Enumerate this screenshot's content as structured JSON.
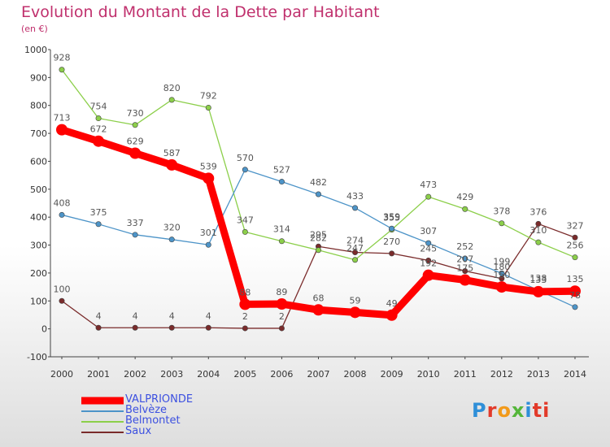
{
  "title": "Evolution du Montant de la Dette par Habitant",
  "subtitle": "(en €)",
  "logo": "Proxiti",
  "chart_data": {
    "type": "line",
    "x": [
      "2000",
      "2001",
      "2002",
      "2003",
      "2004",
      "2005",
      "2006",
      "2007",
      "2008",
      "2009",
      "2010",
      "2011",
      "2012",
      "2013",
      "2014"
    ],
    "ylim": [
      -100,
      1000
    ],
    "yticks": [
      "-100",
      "0",
      "100",
      "200",
      "300",
      "400",
      "500",
      "600",
      "700",
      "800",
      "900",
      "1000"
    ],
    "grid": false,
    "legend_position": "bottom-left",
    "series": [
      {
        "name": "VALPRIONDE",
        "color": "#ff0000",
        "values": [
          713,
          672,
          629,
          587,
          539,
          88,
          89,
          68,
          59,
          49,
          192,
          175,
          150,
          133,
          135
        ],
        "labels": [
          "713",
          "672",
          "629",
          "587",
          "539",
          "88",
          "89",
          "68",
          "59",
          "49",
          "192",
          "175",
          "150",
          "133",
          "135"
        ]
      },
      {
        "name": "Belvèze",
        "color": "#4d94c8",
        "values": [
          408,
          375,
          337,
          320,
          301,
          570,
          527,
          482,
          433,
          359,
          307,
          252,
          199,
          138,
          78
        ],
        "labels": [
          "408",
          "375",
          "337",
          "320",
          "301",
          "570",
          "527",
          "482",
          "433",
          "359",
          "307",
          "252",
          "199",
          "138",
          "78"
        ]
      },
      {
        "name": "Belmontet",
        "color": "#8ccf4a",
        "values": [
          928,
          754,
          730,
          820,
          792,
          347,
          314,
          282,
          247,
          355,
          473,
          429,
          378,
          310,
          256
        ],
        "labels": [
          "928",
          "754",
          "730",
          "820",
          "792",
          "347",
          "314",
          "282",
          "247",
          "355",
          "473",
          "429",
          "378",
          "310",
          "256"
        ]
      },
      {
        "name": "Saux",
        "color": "#7a2b2b",
        "values": [
          100,
          4,
          4,
          4,
          4,
          2,
          2,
          295,
          274,
          270,
          245,
          207,
          180,
          376,
          327
        ],
        "labels": [
          "100",
          "4",
          "4",
          "4",
          "4",
          "2",
          "2",
          "295",
          "274",
          "270",
          "245",
          "207",
          "180",
          "376",
          "327"
        ]
      }
    ]
  }
}
